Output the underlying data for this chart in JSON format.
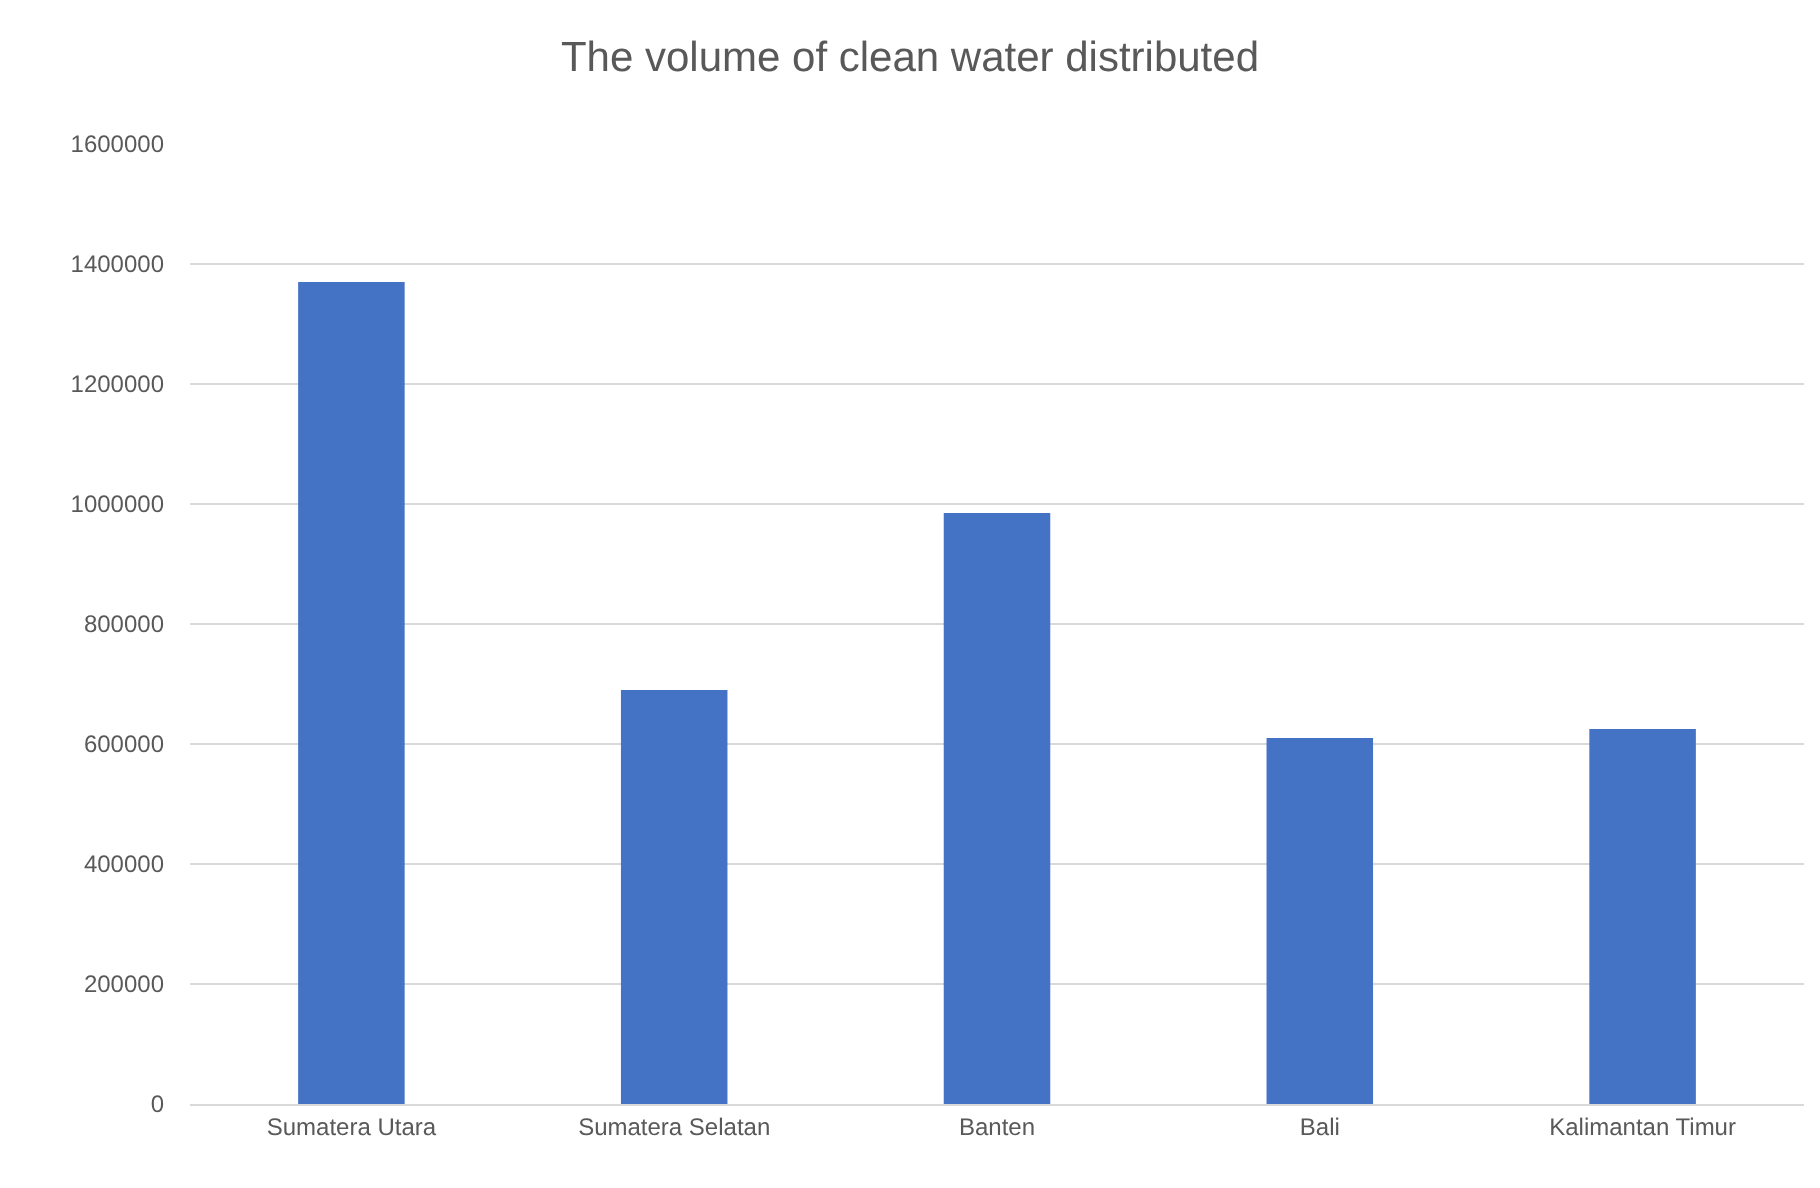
{
  "chart_data": {
    "type": "bar",
    "title": "The volume of clean water distributed",
    "categories": [
      "Sumatera Utara",
      "Sumatera Selatan",
      "Banten",
      "Bali",
      "Kalimantan Timur"
    ],
    "values": [
      1370000,
      690000,
      985000,
      610000,
      625000
    ],
    "color": "#4472c4",
    "ylim": [
      0,
      1600000
    ],
    "yticks": [
      0,
      200000,
      400000,
      600000,
      800000,
      1000000,
      1200000,
      1400000,
      1600000
    ],
    "grid": "y"
  }
}
